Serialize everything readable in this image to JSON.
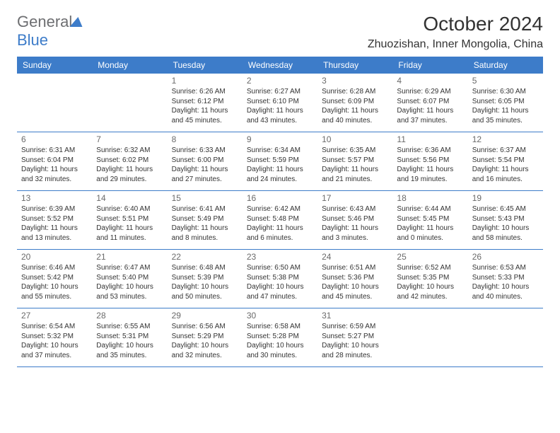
{
  "brand": {
    "name1": "General",
    "name2": "Blue"
  },
  "title": "October 2024",
  "location": "Zhuozishan, Inner Mongolia, China",
  "colors": {
    "accent": "#3d7cc9",
    "header_text": "#ffffff",
    "body_text": "#333333",
    "muted": "#6d6e71"
  },
  "day_names": [
    "Sunday",
    "Monday",
    "Tuesday",
    "Wednesday",
    "Thursday",
    "Friday",
    "Saturday"
  ],
  "weeks": [
    [
      {
        "n": "",
        "sunrise": "",
        "sunset": "",
        "daylight": ""
      },
      {
        "n": "",
        "sunrise": "",
        "sunset": "",
        "daylight": ""
      },
      {
        "n": "1",
        "sunrise": "Sunrise: 6:26 AM",
        "sunset": "Sunset: 6:12 PM",
        "daylight": "Daylight: 11 hours and 45 minutes."
      },
      {
        "n": "2",
        "sunrise": "Sunrise: 6:27 AM",
        "sunset": "Sunset: 6:10 PM",
        "daylight": "Daylight: 11 hours and 43 minutes."
      },
      {
        "n": "3",
        "sunrise": "Sunrise: 6:28 AM",
        "sunset": "Sunset: 6:09 PM",
        "daylight": "Daylight: 11 hours and 40 minutes."
      },
      {
        "n": "4",
        "sunrise": "Sunrise: 6:29 AM",
        "sunset": "Sunset: 6:07 PM",
        "daylight": "Daylight: 11 hours and 37 minutes."
      },
      {
        "n": "5",
        "sunrise": "Sunrise: 6:30 AM",
        "sunset": "Sunset: 6:05 PM",
        "daylight": "Daylight: 11 hours and 35 minutes."
      }
    ],
    [
      {
        "n": "6",
        "sunrise": "Sunrise: 6:31 AM",
        "sunset": "Sunset: 6:04 PM",
        "daylight": "Daylight: 11 hours and 32 minutes."
      },
      {
        "n": "7",
        "sunrise": "Sunrise: 6:32 AM",
        "sunset": "Sunset: 6:02 PM",
        "daylight": "Daylight: 11 hours and 29 minutes."
      },
      {
        "n": "8",
        "sunrise": "Sunrise: 6:33 AM",
        "sunset": "Sunset: 6:00 PM",
        "daylight": "Daylight: 11 hours and 27 minutes."
      },
      {
        "n": "9",
        "sunrise": "Sunrise: 6:34 AM",
        "sunset": "Sunset: 5:59 PM",
        "daylight": "Daylight: 11 hours and 24 minutes."
      },
      {
        "n": "10",
        "sunrise": "Sunrise: 6:35 AM",
        "sunset": "Sunset: 5:57 PM",
        "daylight": "Daylight: 11 hours and 21 minutes."
      },
      {
        "n": "11",
        "sunrise": "Sunrise: 6:36 AM",
        "sunset": "Sunset: 5:56 PM",
        "daylight": "Daylight: 11 hours and 19 minutes."
      },
      {
        "n": "12",
        "sunrise": "Sunrise: 6:37 AM",
        "sunset": "Sunset: 5:54 PM",
        "daylight": "Daylight: 11 hours and 16 minutes."
      }
    ],
    [
      {
        "n": "13",
        "sunrise": "Sunrise: 6:39 AM",
        "sunset": "Sunset: 5:52 PM",
        "daylight": "Daylight: 11 hours and 13 minutes."
      },
      {
        "n": "14",
        "sunrise": "Sunrise: 6:40 AM",
        "sunset": "Sunset: 5:51 PM",
        "daylight": "Daylight: 11 hours and 11 minutes."
      },
      {
        "n": "15",
        "sunrise": "Sunrise: 6:41 AM",
        "sunset": "Sunset: 5:49 PM",
        "daylight": "Daylight: 11 hours and 8 minutes."
      },
      {
        "n": "16",
        "sunrise": "Sunrise: 6:42 AM",
        "sunset": "Sunset: 5:48 PM",
        "daylight": "Daylight: 11 hours and 6 minutes."
      },
      {
        "n": "17",
        "sunrise": "Sunrise: 6:43 AM",
        "sunset": "Sunset: 5:46 PM",
        "daylight": "Daylight: 11 hours and 3 minutes."
      },
      {
        "n": "18",
        "sunrise": "Sunrise: 6:44 AM",
        "sunset": "Sunset: 5:45 PM",
        "daylight": "Daylight: 11 hours and 0 minutes."
      },
      {
        "n": "19",
        "sunrise": "Sunrise: 6:45 AM",
        "sunset": "Sunset: 5:43 PM",
        "daylight": "Daylight: 10 hours and 58 minutes."
      }
    ],
    [
      {
        "n": "20",
        "sunrise": "Sunrise: 6:46 AM",
        "sunset": "Sunset: 5:42 PM",
        "daylight": "Daylight: 10 hours and 55 minutes."
      },
      {
        "n": "21",
        "sunrise": "Sunrise: 6:47 AM",
        "sunset": "Sunset: 5:40 PM",
        "daylight": "Daylight: 10 hours and 53 minutes."
      },
      {
        "n": "22",
        "sunrise": "Sunrise: 6:48 AM",
        "sunset": "Sunset: 5:39 PM",
        "daylight": "Daylight: 10 hours and 50 minutes."
      },
      {
        "n": "23",
        "sunrise": "Sunrise: 6:50 AM",
        "sunset": "Sunset: 5:38 PM",
        "daylight": "Daylight: 10 hours and 47 minutes."
      },
      {
        "n": "24",
        "sunrise": "Sunrise: 6:51 AM",
        "sunset": "Sunset: 5:36 PM",
        "daylight": "Daylight: 10 hours and 45 minutes."
      },
      {
        "n": "25",
        "sunrise": "Sunrise: 6:52 AM",
        "sunset": "Sunset: 5:35 PM",
        "daylight": "Daylight: 10 hours and 42 minutes."
      },
      {
        "n": "26",
        "sunrise": "Sunrise: 6:53 AM",
        "sunset": "Sunset: 5:33 PM",
        "daylight": "Daylight: 10 hours and 40 minutes."
      }
    ],
    [
      {
        "n": "27",
        "sunrise": "Sunrise: 6:54 AM",
        "sunset": "Sunset: 5:32 PM",
        "daylight": "Daylight: 10 hours and 37 minutes."
      },
      {
        "n": "28",
        "sunrise": "Sunrise: 6:55 AM",
        "sunset": "Sunset: 5:31 PM",
        "daylight": "Daylight: 10 hours and 35 minutes."
      },
      {
        "n": "29",
        "sunrise": "Sunrise: 6:56 AM",
        "sunset": "Sunset: 5:29 PM",
        "daylight": "Daylight: 10 hours and 32 minutes."
      },
      {
        "n": "30",
        "sunrise": "Sunrise: 6:58 AM",
        "sunset": "Sunset: 5:28 PM",
        "daylight": "Daylight: 10 hours and 30 minutes."
      },
      {
        "n": "31",
        "sunrise": "Sunrise: 6:59 AM",
        "sunset": "Sunset: 5:27 PM",
        "daylight": "Daylight: 10 hours and 28 minutes."
      },
      {
        "n": "",
        "sunrise": "",
        "sunset": "",
        "daylight": ""
      },
      {
        "n": "",
        "sunrise": "",
        "sunset": "",
        "daylight": ""
      }
    ]
  ]
}
